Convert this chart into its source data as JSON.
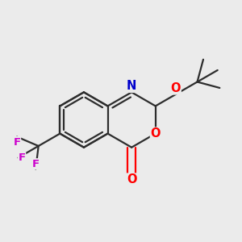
{
  "bg_color": "#ebebeb",
  "bond_color": "#2d2d2d",
  "bond_width": 1.6,
  "atom_colors": {
    "O": "#ff0000",
    "N": "#0000cc",
    "F": "#cc00cc",
    "C": "#2d2d2d"
  },
  "font_size_atom": 10.5,
  "xlim": [
    0.0,
    1.0
  ],
  "ylim": [
    0.08,
    0.92
  ]
}
